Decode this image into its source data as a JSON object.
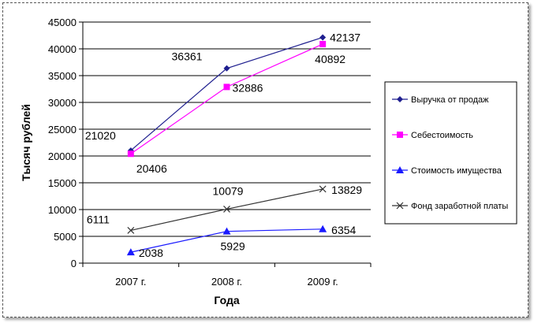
{
  "chart_data": {
    "type": "line",
    "categories": [
      "2007 г.",
      "2008 г.",
      "2009 г."
    ],
    "xlabel": "Года",
    "ylabel": "Тысяч рублей",
    "ylim": [
      0,
      45000
    ],
    "yticks": [
      0,
      5000,
      10000,
      15000,
      20000,
      25000,
      30000,
      35000,
      40000,
      45000
    ],
    "grid": true,
    "legend_position": "right",
    "series": [
      {
        "name": "Выручка от продаж",
        "values": [
          21020,
          36361,
          42137
        ],
        "labels": [
          "21020",
          "36361",
          "42137"
        ],
        "color": "#1f1f8f",
        "marker": "diamond"
      },
      {
        "name": "Себестоимость",
        "values": [
          20406,
          32886,
          40892
        ],
        "labels": [
          "20406",
          "32886",
          "40892"
        ],
        "color": "#ff00ff",
        "marker": "square"
      },
      {
        "name": "Стоимость имущества",
        "values": [
          2038,
          5929,
          6354
        ],
        "labels": [
          "2038",
          "5929",
          "6354"
        ],
        "color": "#1a1aff",
        "marker": "triangle"
      },
      {
        "name": "Фонд заработной платы",
        "values": [
          6111,
          10079,
          13829
        ],
        "labels": [
          "6111",
          "10079",
          "13829"
        ],
        "color": "#333333",
        "marker": "x"
      }
    ]
  }
}
